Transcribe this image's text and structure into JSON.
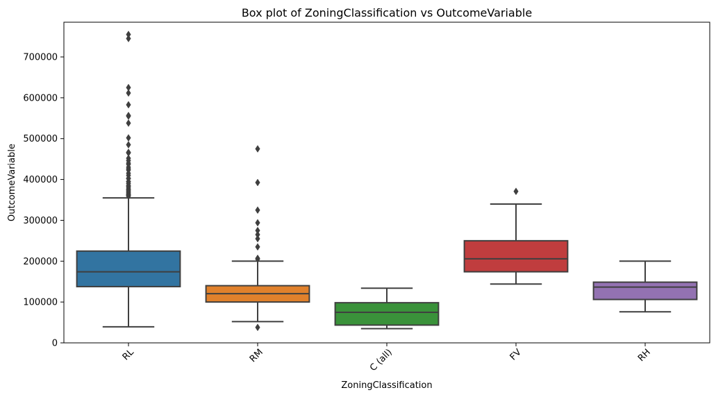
{
  "chart_data": {
    "type": "box",
    "title": "Box plot of ZoningClassification vs OutcomeVariable",
    "xlabel": "ZoningClassification",
    "ylabel": "OutcomeVariable",
    "ylim": [
      0,
      785000
    ],
    "yticks": [
      0,
      100000,
      200000,
      300000,
      400000,
      500000,
      600000,
      700000
    ],
    "ytick_labels": [
      "0",
      "100000",
      "200000",
      "300000",
      "400000",
      "500000",
      "600000",
      "700000"
    ],
    "grid": false,
    "categories": [
      "RL",
      "RM",
      "C (all)",
      "FV",
      "RH"
    ],
    "boxes": [
      {
        "category": "RL",
        "color": "#3274a1",
        "whisker_low": 39300,
        "q1": 137700,
        "median": 174000,
        "q3": 224700,
        "whisker_high": 355000,
        "outliers": [
          359100,
          360000,
          361900,
          363000,
          364800,
          367300,
          369900,
          372400,
          375000,
          377000,
          381000,
          383900,
          385000,
          390000,
          394400,
          395000,
          402000,
          403000,
          410000,
          415300,
          423000,
          426000,
          430000,
          437100,
          440000,
          446300,
          451900,
          465000,
          466500,
          485000,
          501800,
          538000,
          555000,
          556600,
          582900,
          611700,
          625000,
          745000,
          755000
        ]
      },
      {
        "category": "RM",
        "color": "#e1812c",
        "whisker_low": 52000,
        "q1": 100000,
        "median": 120500,
        "q3": 140000,
        "whisker_high": 200000,
        "outliers": [
          37900,
          205000,
          207000,
          235000,
          255000,
          265000,
          275000,
          294000,
          325000,
          392500,
          475000
        ]
      },
      {
        "category": "C (all)",
        "color": "#3a923a",
        "whisker_low": 34900,
        "q1": 43500,
        "median": 74700,
        "q3": 98300,
        "whisker_high": 133900,
        "outliers": []
      },
      {
        "category": "FV",
        "color": "#c03d3e",
        "whisker_low": 144100,
        "q1": 174000,
        "median": 205900,
        "q3": 250000,
        "whisker_high": 339800,
        "outliers": [
          370900
        ]
      },
      {
        "category": "RH",
        "color": "#9372b2",
        "whisker_low": 76000,
        "q1": 106200,
        "median": 136500,
        "q3": 148600,
        "whisker_high": 200000,
        "outliers": []
      }
    ]
  }
}
